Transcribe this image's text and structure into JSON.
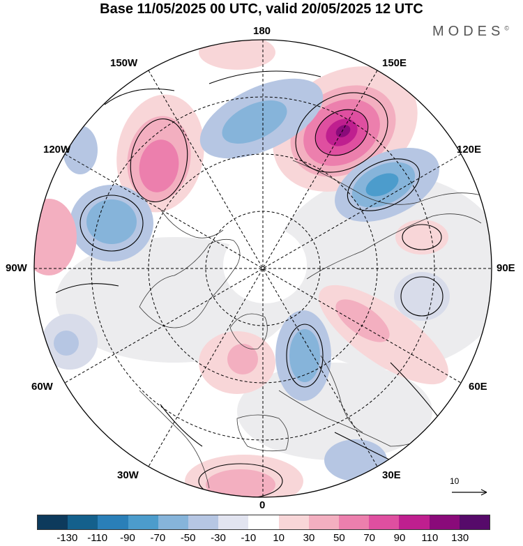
{
  "title": "Base 11/05/2025 00 UTC, valid 20/05/2025 12 UTC",
  "logo": "MODES",
  "logo_mark": "©",
  "longitude_labels": {
    "top": "180",
    "top_left": "150W",
    "top_right": "150E",
    "upper_left": "120W",
    "upper_right": "120E",
    "left": "90W",
    "right": "90E",
    "lower_left": "60W",
    "lower_right": "60E",
    "bottom_left": "30W",
    "bottom_right": "30E",
    "bottom": "0"
  },
  "reference_vector": "10",
  "colorbar": {
    "ticks": [
      "-130",
      "-110",
      "-90",
      "-70",
      "-50",
      "-30",
      "-10",
      "10",
      "30",
      "50",
      "70",
      "90",
      "110",
      "130"
    ],
    "colors": [
      "#0d3a5c",
      "#14608c",
      "#2a7fb8",
      "#4c9ccc",
      "#86b4da",
      "#b6c6e3",
      "#e2e4f0",
      "#ffffff",
      "#f8d6d8",
      "#f3afc0",
      "#ec7fad",
      "#df4fa0",
      "#bf1f8f",
      "#8a0a7a",
      "#560a6a"
    ]
  },
  "anomaly_centers": [
    {
      "sign": "positive",
      "level": "110"
    },
    {
      "sign": "positive",
      "level": "70"
    },
    {
      "sign": "negative",
      "level": "-70"
    },
    {
      "sign": "negative",
      "level": "-70"
    },
    {
      "sign": "negative",
      "level": "-50"
    },
    {
      "sign": "positive",
      "level": "50"
    },
    {
      "sign": "positive",
      "level": "50"
    },
    {
      "sign": "negative",
      "level": "-50"
    },
    {
      "sign": "positive",
      "level": "30"
    }
  ]
}
